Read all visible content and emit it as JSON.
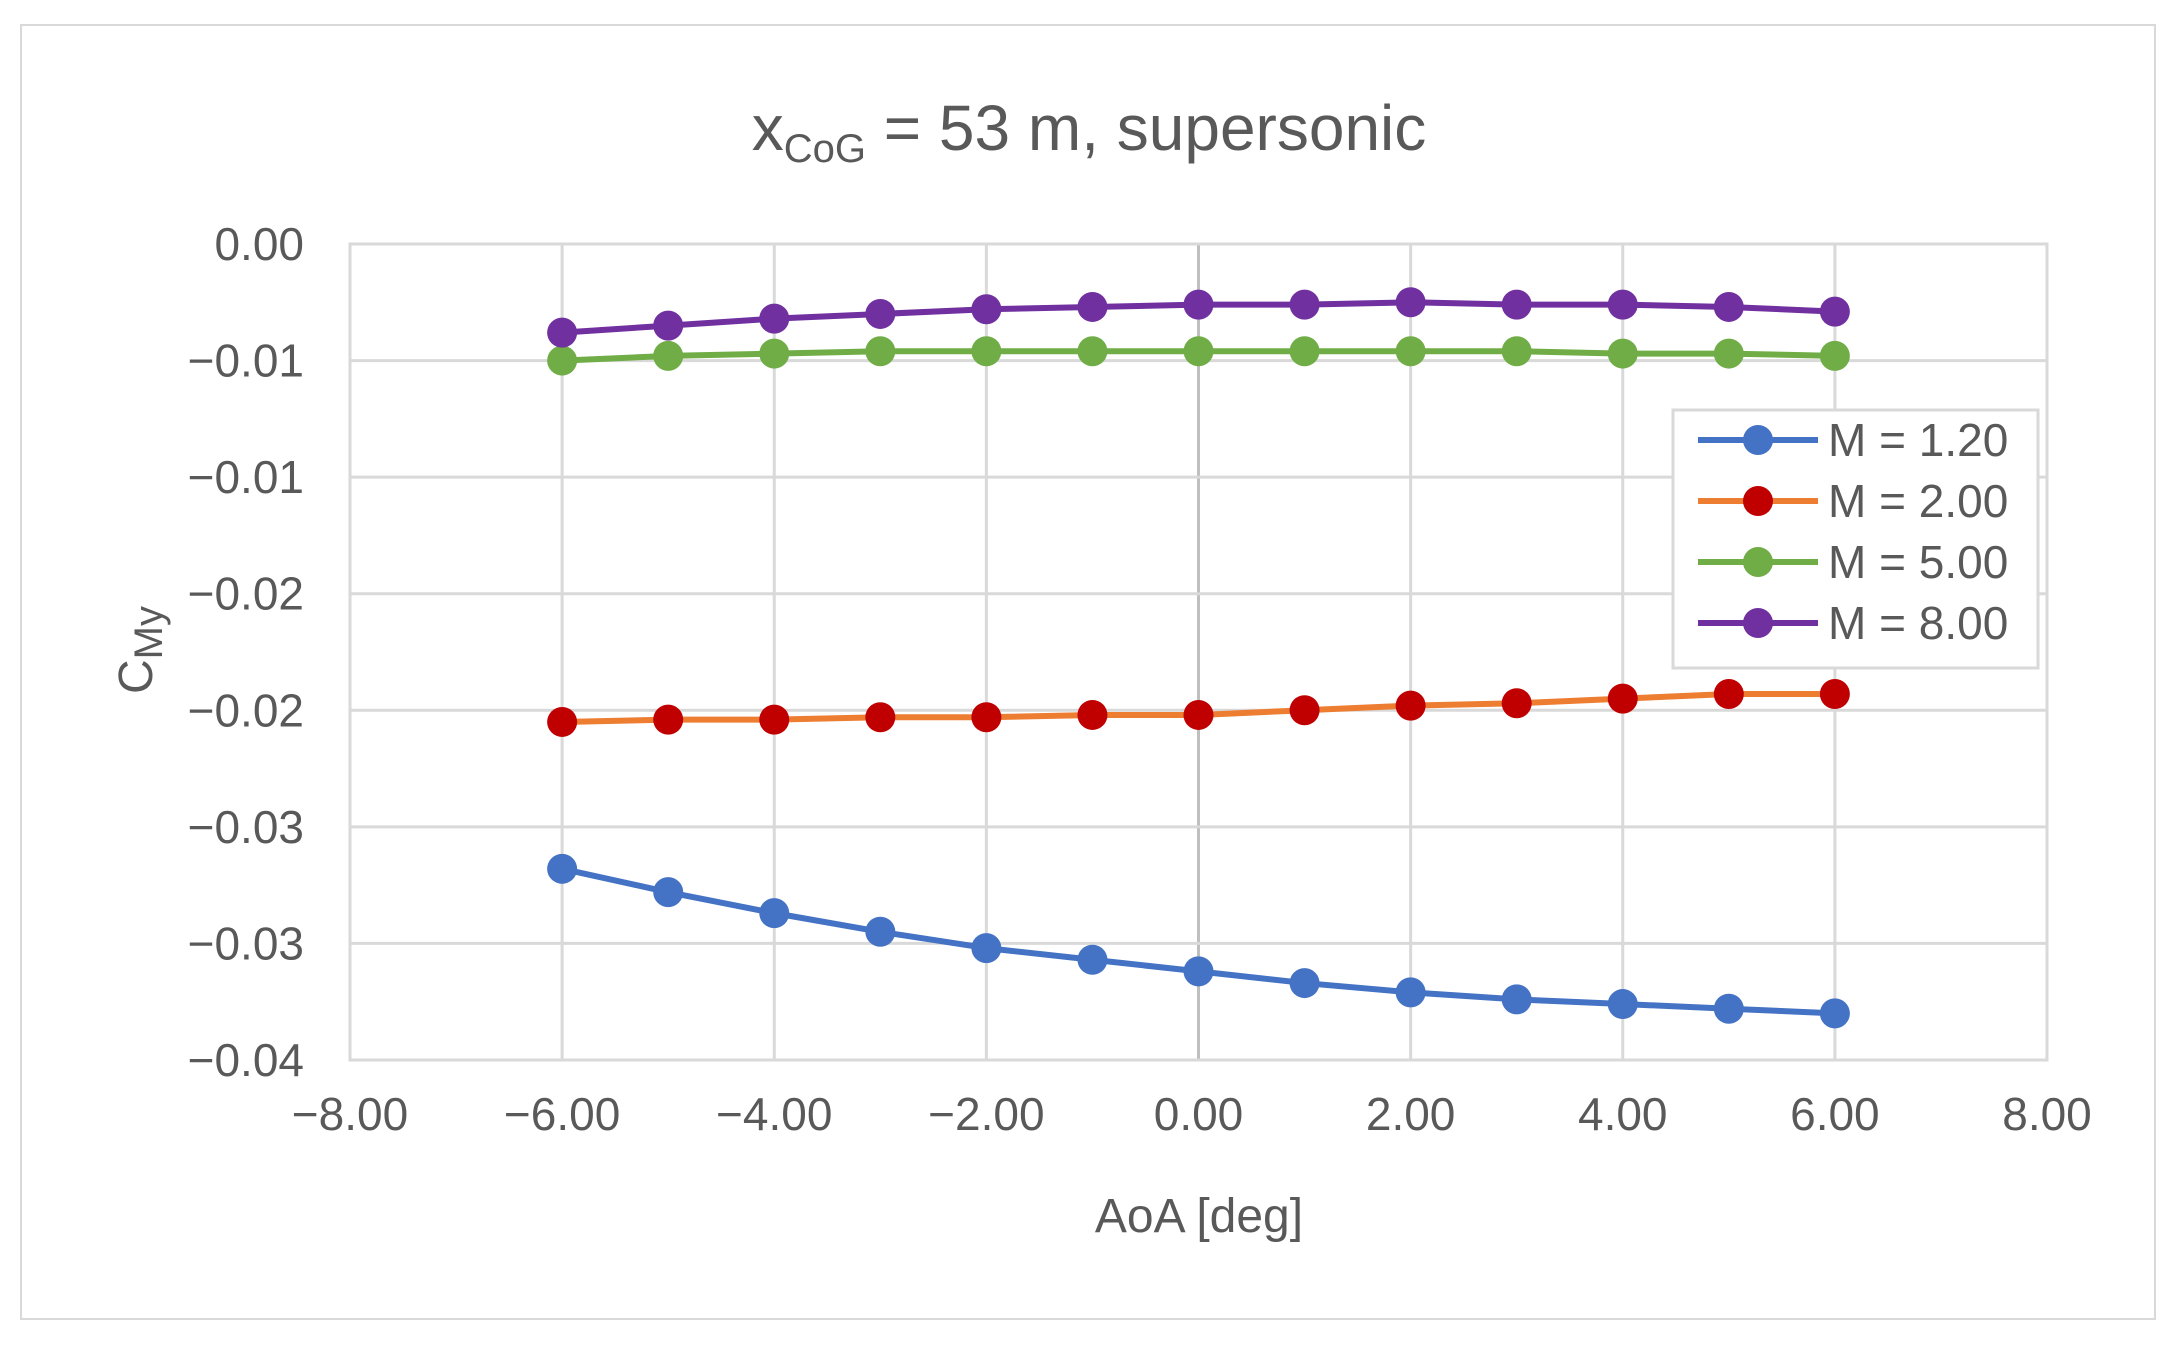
{
  "chart_data": {
    "type": "line",
    "title": {
      "main": "x",
      "sub": "CoG",
      "rest": " = 53 m, supersonic"
    },
    "xlabel": "AoA [deg]",
    "ylabel": {
      "main": "C",
      "sub": "My"
    },
    "xlim": [
      -8,
      8
    ],
    "ylim": [
      -0.035,
      0
    ],
    "x_tick_values": [
      -8,
      -6,
      -4,
      -2,
      0,
      2,
      4,
      6,
      8
    ],
    "x_tick_labels": [
      "−8.00",
      "−6.00",
      "−4.00",
      "−2.00",
      "0.00",
      "2.00",
      "4.00",
      "6.00",
      "8.00"
    ],
    "y_tick_values": [
      0,
      -0.005,
      -0.01,
      -0.015,
      -0.02,
      -0.025,
      -0.03,
      -0.035
    ],
    "y_tick_labels": [
      "0.00",
      "−0.01",
      "−0.01",
      "−0.02",
      "−0.02",
      "−0.03",
      "−0.03",
      "−0.04"
    ],
    "grid": true,
    "legend_position": "right",
    "x": [
      -6,
      -5,
      -4,
      -3,
      -2,
      -1,
      0,
      1,
      2,
      3,
      4,
      5,
      6
    ],
    "series": [
      {
        "name": "M = 1.20",
        "color": "#4472c4",
        "values": [
          -0.0268,
          -0.0278,
          -0.0287,
          -0.0295,
          -0.0302,
          -0.0307,
          -0.0312,
          -0.0317,
          -0.0321,
          -0.0324,
          -0.0326,
          -0.0328,
          -0.033
        ]
      },
      {
        "name": "M = 2.00",
        "color": "#ed7d31",
        "marker_color": "#c00000",
        "values": [
          -0.0205,
          -0.0204,
          -0.0204,
          -0.0203,
          -0.0203,
          -0.0202,
          -0.0202,
          -0.02,
          -0.0198,
          -0.0197,
          -0.0195,
          -0.0193,
          -0.0193
        ]
      },
      {
        "name": "M = 5.00",
        "color": "#70ad47",
        "values": [
          -0.005,
          -0.0048,
          -0.0047,
          -0.0046,
          -0.0046,
          -0.0046,
          -0.0046,
          -0.0046,
          -0.0046,
          -0.0046,
          -0.0047,
          -0.0047,
          -0.0048
        ]
      },
      {
        "name": "M = 8.00",
        "color": "#7030a0",
        "values": [
          -0.0038,
          -0.0035,
          -0.0032,
          -0.003,
          -0.0028,
          -0.0027,
          -0.0026,
          -0.0026,
          -0.0025,
          -0.0026,
          -0.0026,
          -0.0027,
          -0.0029
        ]
      }
    ]
  }
}
